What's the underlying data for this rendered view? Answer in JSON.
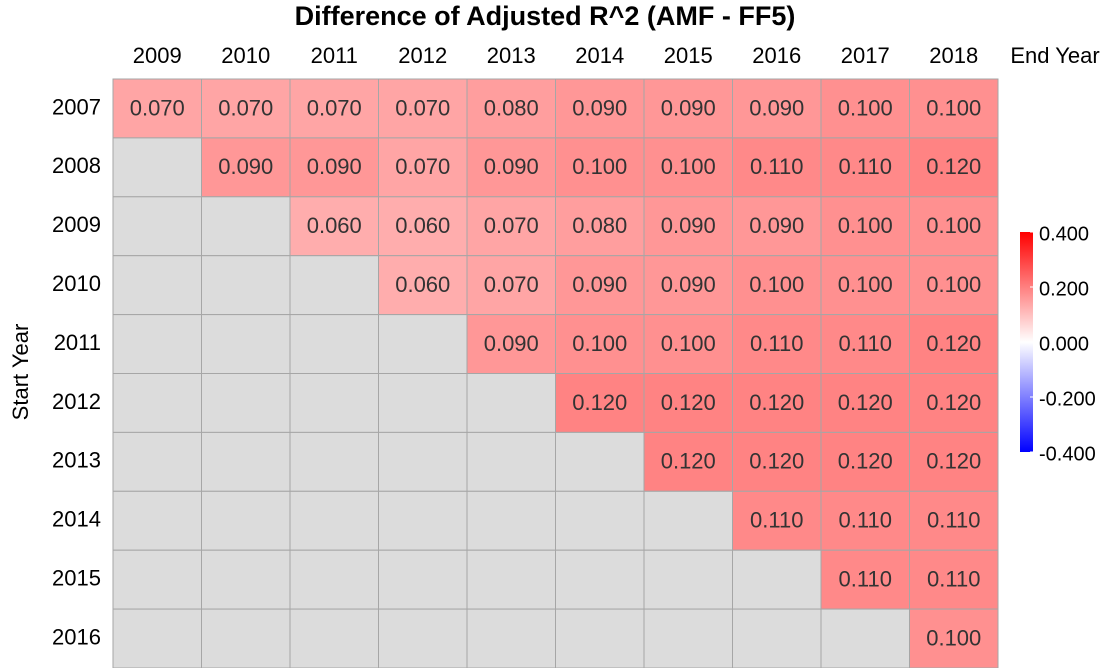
{
  "chart_data": {
    "type": "heatmap",
    "title": "Difference of Adjusted R^2 (AMF - FF5)",
    "x_label": "End Year",
    "y_label": "Start Year",
    "x_categories": [
      "2009",
      "2010",
      "2011",
      "2012",
      "2013",
      "2014",
      "2015",
      "2016",
      "2017",
      "2018"
    ],
    "y_categories": [
      "2007",
      "2008",
      "2009",
      "2010",
      "2011",
      "2012",
      "2013",
      "2014",
      "2015",
      "2016"
    ],
    "values": [
      [
        0.07,
        0.07,
        0.07,
        0.07,
        0.08,
        0.09,
        0.09,
        0.09,
        0.1,
        0.1
      ],
      [
        null,
        0.09,
        0.09,
        0.07,
        0.09,
        0.1,
        0.1,
        0.11,
        0.11,
        0.12
      ],
      [
        null,
        null,
        0.06,
        0.06,
        0.07,
        0.08,
        0.09,
        0.09,
        0.1,
        0.1
      ],
      [
        null,
        null,
        null,
        0.06,
        0.07,
        0.09,
        0.09,
        0.1,
        0.1,
        0.1
      ],
      [
        null,
        null,
        null,
        null,
        0.09,
        0.1,
        0.1,
        0.11,
        0.11,
        0.12
      ],
      [
        null,
        null,
        null,
        null,
        null,
        0.12,
        0.12,
        0.12,
        0.12,
        0.12
      ],
      [
        null,
        null,
        null,
        null,
        null,
        null,
        0.12,
        0.12,
        0.12,
        0.12
      ],
      [
        null,
        null,
        null,
        null,
        null,
        null,
        null,
        0.11,
        0.11,
        0.11
      ],
      [
        null,
        null,
        null,
        null,
        null,
        null,
        null,
        null,
        0.11,
        0.11
      ],
      [
        null,
        null,
        null,
        null,
        null,
        null,
        null,
        null,
        null,
        0.1
      ]
    ],
    "value_labels": [
      [
        "0.070",
        "0.070",
        "0.070",
        "0.070",
        "0.080",
        "0.090",
        "0.090",
        "0.090",
        "0.100",
        "0.100"
      ],
      [
        null,
        "0.090",
        "0.090",
        "0.070",
        "0.090",
        "0.100",
        "0.100",
        "0.110",
        "0.110",
        "0.120"
      ],
      [
        null,
        null,
        "0.060",
        "0.060",
        "0.070",
        "0.080",
        "0.090",
        "0.090",
        "0.100",
        "0.100"
      ],
      [
        null,
        null,
        null,
        "0.060",
        "0.070",
        "0.090",
        "0.090",
        "0.100",
        "0.100",
        "0.100"
      ],
      [
        null,
        null,
        null,
        null,
        "0.090",
        "0.100",
        "0.100",
        "0.110",
        "0.110",
        "0.120"
      ],
      [
        null,
        null,
        null,
        null,
        null,
        "0.120",
        "0.120",
        "0.120",
        "0.120",
        "0.120"
      ],
      [
        null,
        null,
        null,
        null,
        null,
        null,
        "0.120",
        "0.120",
        "0.120",
        "0.120"
      ],
      [
        null,
        null,
        null,
        null,
        null,
        null,
        null,
        "0.110",
        "0.110",
        "0.110"
      ],
      [
        null,
        null,
        null,
        null,
        null,
        null,
        null,
        null,
        "0.110",
        "0.110"
      ],
      [
        null,
        null,
        null,
        null,
        null,
        null,
        null,
        null,
        null,
        "0.100"
      ]
    ],
    "colorscale": [
      "#0000ff",
      "#ffffff",
      "#ff0000"
    ],
    "missing_color": "#dcdcdc",
    "clim": [
      -0.4,
      0.4
    ],
    "cticks": [
      {
        "value": 0.4,
        "label": "0.400"
      },
      {
        "value": 0.2,
        "label": "0.200"
      },
      {
        "value": 0,
        "label": "0.000"
      },
      {
        "value": -0.2,
        "label": "-0.200"
      },
      {
        "value": -0.4,
        "label": "-0.400"
      }
    ]
  }
}
